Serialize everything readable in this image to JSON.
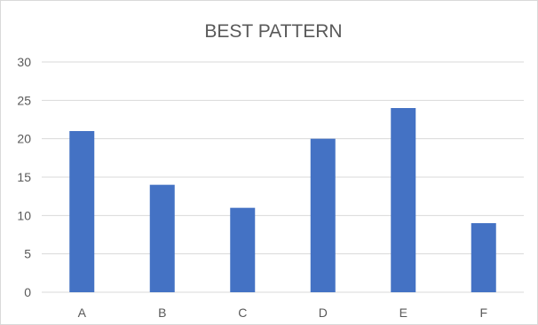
{
  "chart_data": {
    "type": "bar",
    "title": "BEST PATTERN",
    "xlabel": "",
    "ylabel": "",
    "categories": [
      "A",
      "B",
      "C",
      "D",
      "E",
      "F"
    ],
    "values": [
      21,
      14,
      11,
      20,
      24,
      9
    ],
    "ylim": [
      0,
      30
    ],
    "yticks": [
      0,
      5,
      10,
      15,
      20,
      25,
      30
    ],
    "grid": true,
    "legend": "none",
    "bar_color": "#4472C4"
  }
}
